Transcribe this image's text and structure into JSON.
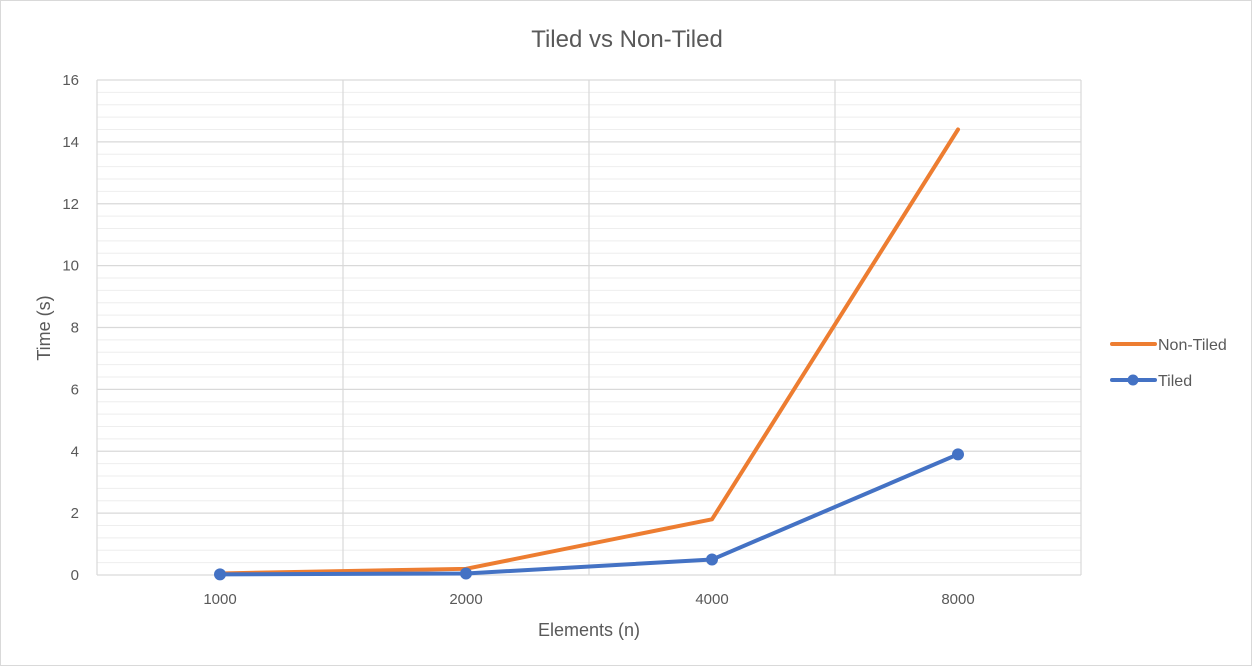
{
  "chart_data": {
    "type": "line",
    "title": "Tiled vs Non-Tiled",
    "xlabel": "Elements (n)",
    "ylabel": "Time (s)",
    "categories": [
      "1000",
      "2000",
      "4000",
      "8000"
    ],
    "ylim": [
      0,
      16
    ],
    "y_ticks": [
      "0",
      "2",
      "4",
      "6",
      "8",
      "10",
      "12",
      "14",
      "16"
    ],
    "grid": true,
    "legend_position": "right",
    "series": [
      {
        "name": "Non-Tiled",
        "values": [
          0.05,
          0.2,
          1.8,
          14.4
        ],
        "color": "#ED7D31",
        "marker": "none"
      },
      {
        "name": "Tiled",
        "values": [
          0.02,
          0.05,
          0.5,
          3.9
        ],
        "color": "#4472C4",
        "marker": "circle"
      }
    ]
  }
}
